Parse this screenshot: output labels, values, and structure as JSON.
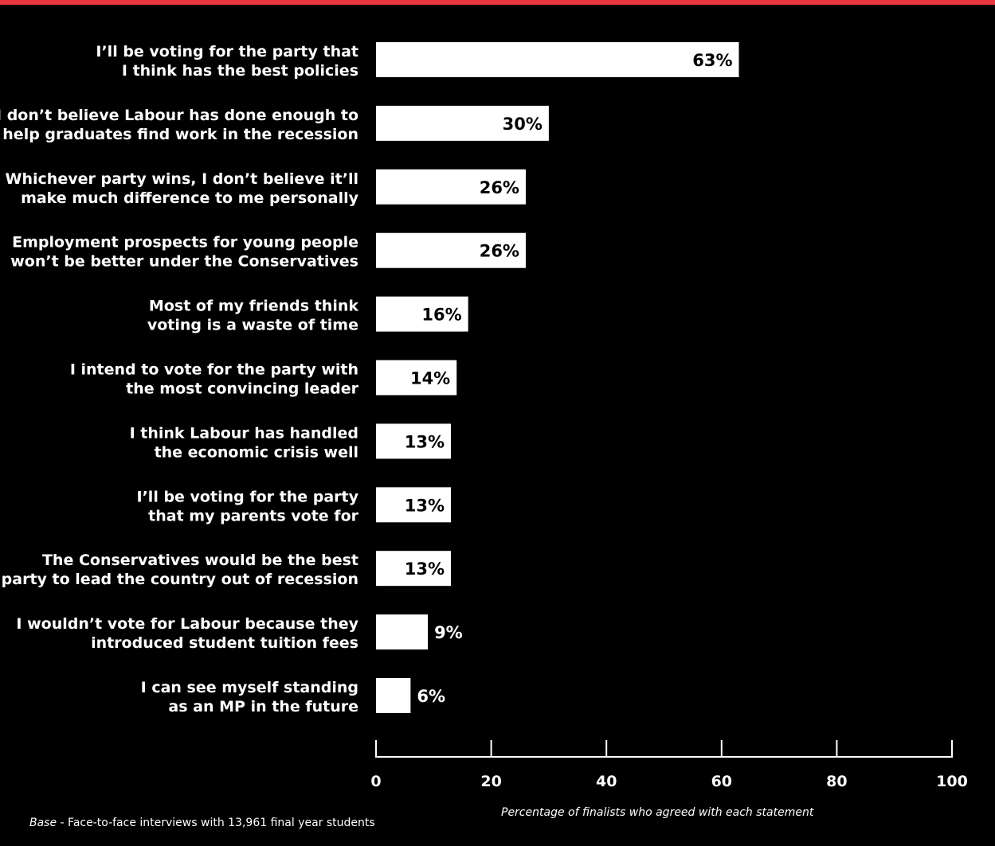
{
  "colors": {
    "background": "#000000",
    "accent_bar": "#e8383d",
    "bar_fill": "#ffffff",
    "text": "#ffffff"
  },
  "footnote": {
    "label": "Base",
    "text": " - Face-to-face interviews with 13,961 final year students"
  },
  "chart_data": {
    "type": "bar",
    "orientation": "horizontal",
    "title": "",
    "xlabel": "Percentage of finalists who agreed with each statement",
    "ylabel": "",
    "xlim": [
      0,
      100
    ],
    "ticks": [
      0,
      20,
      40,
      60,
      80,
      100
    ],
    "grid": false,
    "categories": [
      [
        "I’ll be voting for the party that",
        "I think has the best policies"
      ],
      [
        "I don’t believe Labour has done enough to",
        "help graduates find work in the recession"
      ],
      [
        "Whichever party wins, I don’t believe it’ll",
        "make much difference to me personally"
      ],
      [
        "Employment prospects for young people",
        "won’t be better under the Conservatives"
      ],
      [
        "Most of my friends think",
        "voting is a waste of time"
      ],
      [
        "I intend to vote for the party with",
        "the most convincing leader"
      ],
      [
        "I think Labour has handled",
        "the economic crisis well"
      ],
      [
        "I’ll be voting for the party",
        "that my parents vote for"
      ],
      [
        "The Conservatives would be the best",
        "party to lead the country out of recession"
      ],
      [
        "I wouldn’t vote for Labour because they",
        "introduced student tuition fees"
      ],
      [
        "I can see myself standing",
        "as an MP in the future"
      ]
    ],
    "values": [
      63,
      30,
      26,
      26,
      16,
      14,
      13,
      13,
      13,
      9,
      6
    ],
    "value_labels": [
      "63%",
      "30%",
      "26%",
      "26%",
      "16%",
      "14%",
      "13%",
      "13%",
      "13%",
      "9%",
      "6%"
    ]
  }
}
